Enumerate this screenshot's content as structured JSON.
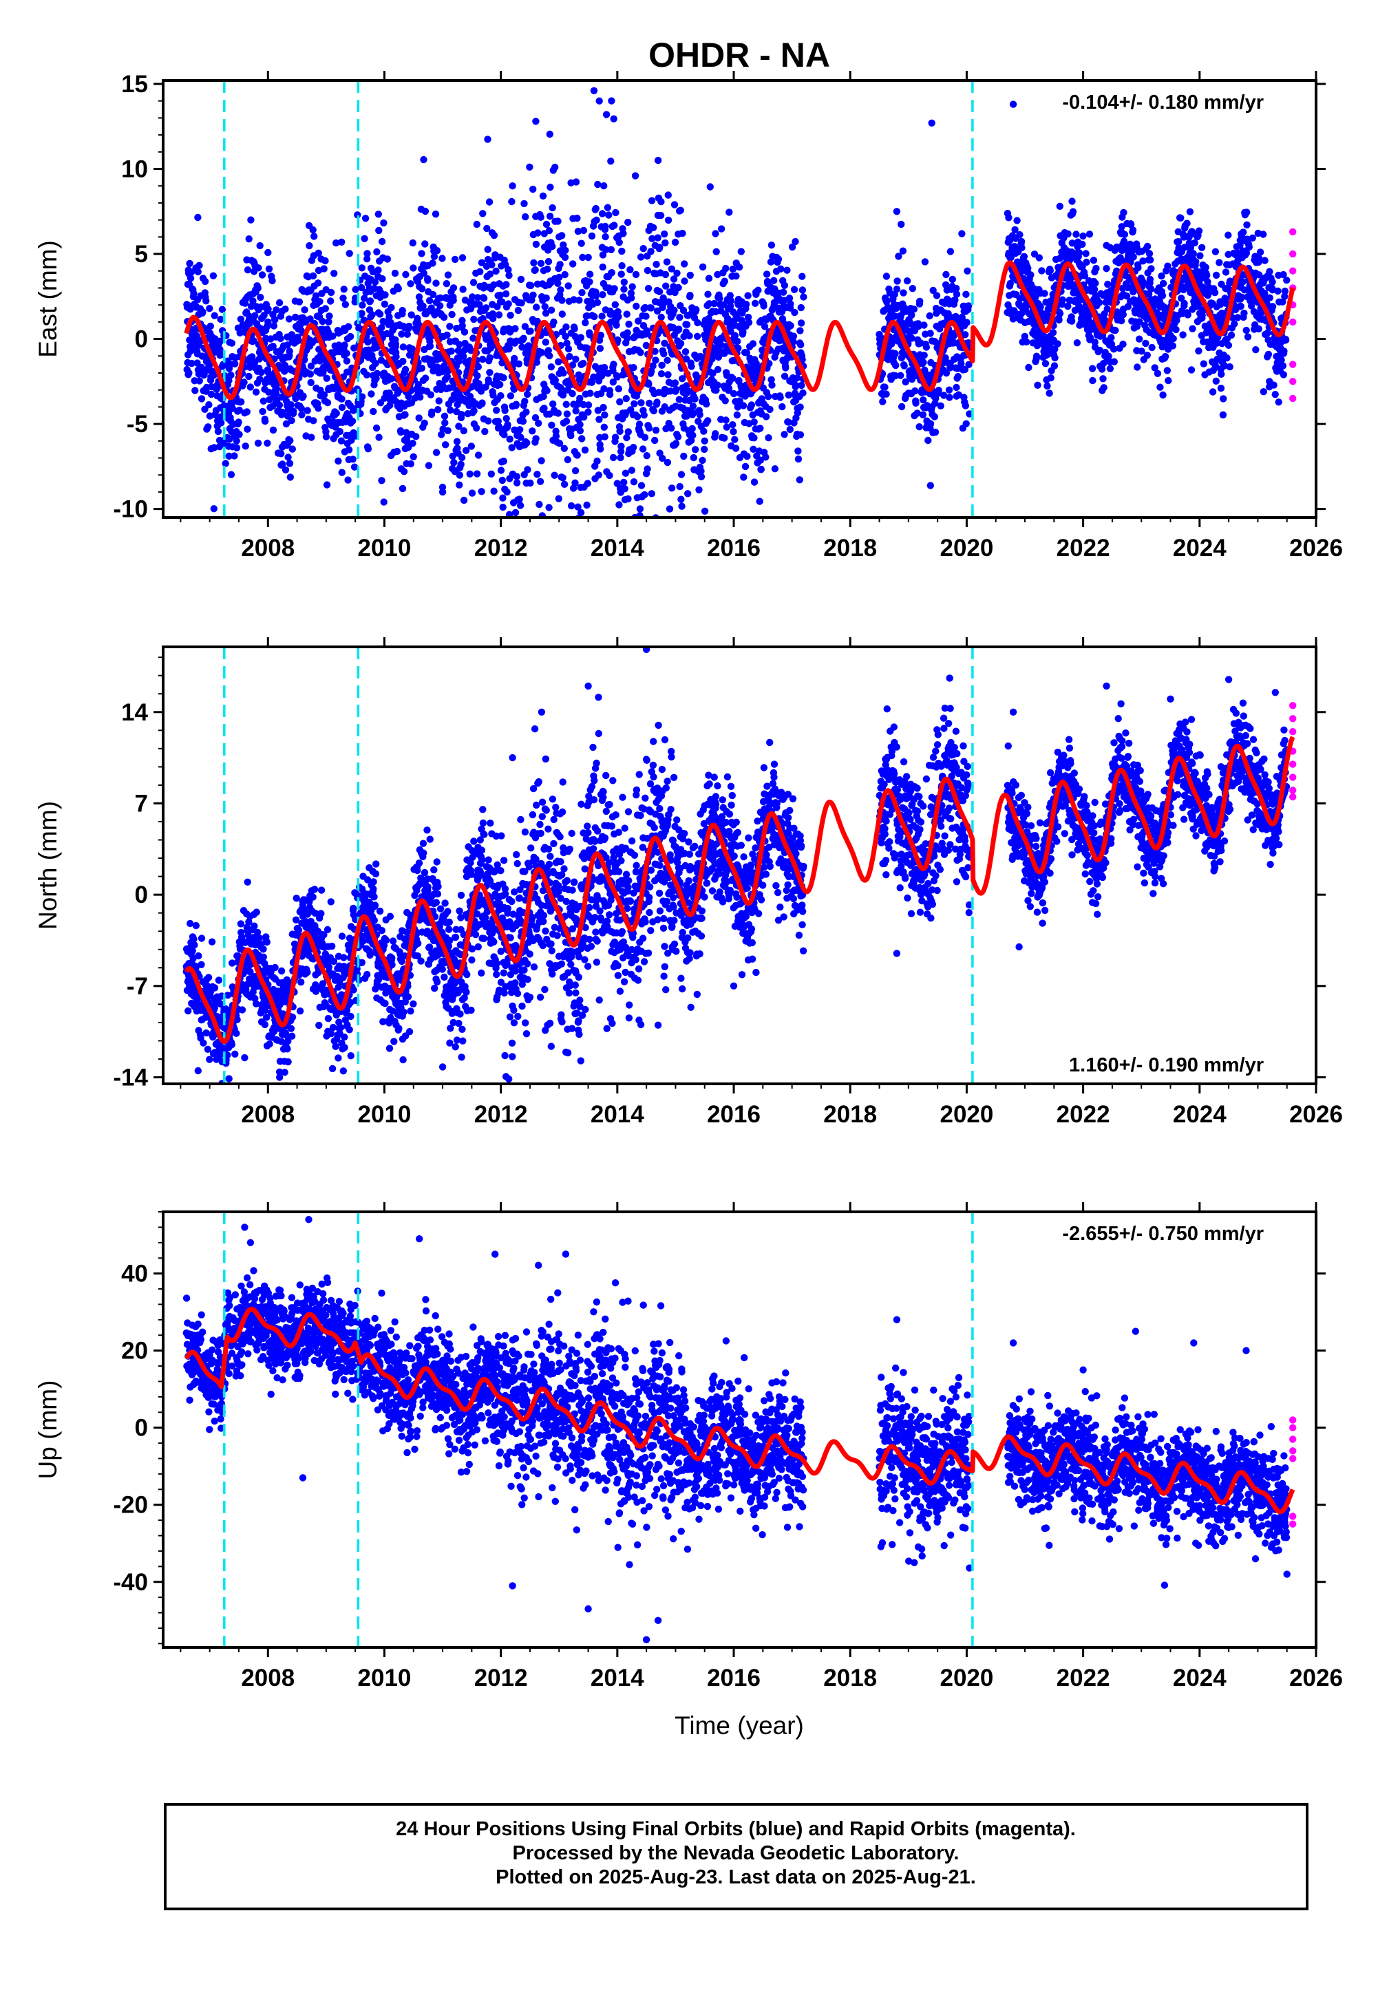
{
  "chart_data": [
    {
      "type": "scatter",
      "title": "OHDR - NA",
      "xlabel": "",
      "ylabel": "East (mm)",
      "xlim": [
        2006.2,
        2026.0
      ],
      "ylim": [
        -10.5,
        15.2
      ],
      "yticks": [
        15,
        10,
        5,
        0,
        -5,
        -10
      ],
      "xticks": [
        2008,
        2010,
        2012,
        2014,
        2016,
        2018,
        2020,
        2022,
        2024,
        2026
      ],
      "rate_text": "-0.104+/- 0.180 mm/yr",
      "rate_position": "top-right",
      "breaks": [
        2007.25,
        2009.55,
        2020.1
      ],
      "final_orbits": {
        "segments": [
          [
            2006.6,
            2017.2
          ],
          [
            2018.5,
            2020.05
          ],
          [
            2020.7,
            2025.5
          ]
        ],
        "points": [
          [
            2006.65,
            3.2
          ],
          [
            2007.0,
            -1.5
          ],
          [
            2007.5,
            -2.0
          ],
          [
            2008.0,
            1.0
          ],
          [
            2008.6,
            -1.8
          ],
          [
            2009.2,
            0.5
          ],
          [
            2009.8,
            -1.2
          ],
          [
            2010.6,
            0.8
          ],
          [
            2011.0,
            -9.0
          ],
          [
            2011.6,
            0.5
          ],
          [
            2012.2,
            9.0
          ],
          [
            2012.6,
            12.8
          ],
          [
            2013.0,
            6.0
          ],
          [
            2013.6,
            14.6
          ],
          [
            2013.9,
            14.0
          ],
          [
            2014.0,
            -8.5
          ],
          [
            2014.7,
            10.5
          ],
          [
            2014.9,
            -10.0
          ],
          [
            2015.5,
            -6.0
          ],
          [
            2016.2,
            -7.5
          ],
          [
            2016.8,
            0.5
          ],
          [
            2018.8,
            7.5
          ],
          [
            2019.4,
            12.7
          ],
          [
            2019.7,
            -3.0
          ],
          [
            2020.8,
            13.8
          ],
          [
            2021.6,
            7.8
          ],
          [
            2022.4,
            5.5
          ],
          [
            2023.0,
            2.5
          ],
          [
            2023.8,
            4.2
          ],
          [
            2024.5,
            2.0
          ],
          [
            2025.2,
            -2.5
          ]
        ],
        "spread": [
          [
            2006.6,
            2.0
          ],
          [
            2011.8,
            3.5
          ],
          [
            2012.3,
            5.0
          ],
          [
            2014.5,
            5.0
          ],
          [
            2015.0,
            3.5
          ],
          [
            2017.2,
            2.5
          ],
          [
            2018.5,
            2.0
          ],
          [
            2020.05,
            2.0
          ],
          [
            2020.7,
            1.6
          ],
          [
            2025.5,
            1.6
          ]
        ]
      },
      "rapid_orbits": {
        "x_range": [
          2025.55,
          2025.65
        ],
        "points": [
          [
            2025.6,
            6.3
          ],
          [
            2025.6,
            5.0
          ],
          [
            2025.6,
            4.0
          ],
          [
            2025.6,
            3.0
          ],
          [
            2025.6,
            2.0
          ],
          [
            2025.6,
            1.0
          ],
          [
            2025.6,
            -1.5
          ],
          [
            2025.6,
            -2.5
          ],
          [
            2025.6,
            -3.5
          ]
        ]
      },
      "model": {
        "trend": [
          [
            2006.6,
            -0.5
          ],
          [
            2007.25,
            -1.5
          ],
          [
            2009.6,
            -1.0
          ],
          [
            2015.0,
            -1.0
          ],
          [
            2020.1,
            -1.0
          ],
          [
            2020.1,
            1.0
          ],
          [
            2020.7,
            2.5
          ],
          [
            2025.6,
            2.2
          ]
        ],
        "annual_amplitude": 1.8,
        "annual_phase": 0.55,
        "semiannual_amplitude": 0.45
      }
    },
    {
      "type": "scatter",
      "title": "",
      "xlabel": "",
      "ylabel": "North (mm)",
      "xlim": [
        2006.2,
        2026.0
      ],
      "ylim": [
        -14.5,
        19.0
      ],
      "yticks": [
        14,
        7,
        0,
        -7,
        -14
      ],
      "xticks": [
        2008,
        2010,
        2012,
        2014,
        2016,
        2018,
        2020,
        2022,
        2024,
        2026
      ],
      "rate_text": "1.160+/- 0.190 mm/yr",
      "rate_position": "bottom-right",
      "breaks": [
        2007.25,
        2009.55,
        2020.1
      ],
      "final_orbits": {
        "segments": [
          [
            2006.6,
            2017.2
          ],
          [
            2018.5,
            2020.05
          ],
          [
            2020.7,
            2025.5
          ]
        ],
        "points": [
          [
            2006.6,
            -5.5
          ],
          [
            2006.8,
            -13.5
          ],
          [
            2007.6,
            -12.5
          ],
          [
            2008.2,
            -14.0
          ],
          [
            2009.8,
            1.8
          ],
          [
            2011.0,
            -13.2
          ],
          [
            2012.2,
            10.5
          ],
          [
            2012.7,
            14.0
          ],
          [
            2013.5,
            16.0
          ],
          [
            2014.5,
            18.8
          ],
          [
            2014.7,
            -10.0
          ],
          [
            2015.5,
            3.0
          ],
          [
            2016.0,
            -7.0
          ],
          [
            2018.8,
            -4.5
          ],
          [
            2019.5,
            11.5
          ],
          [
            2020.8,
            14.0
          ],
          [
            2020.9,
            -4.0
          ],
          [
            2022.4,
            16.0
          ],
          [
            2023.5,
            15.0
          ],
          [
            2024.5,
            16.5
          ],
          [
            2025.3,
            15.5
          ]
        ],
        "spread": [
          [
            2006.6,
            1.6
          ],
          [
            2011.8,
            2.5
          ],
          [
            2012.3,
            4.0
          ],
          [
            2014.6,
            4.5
          ],
          [
            2015.2,
            2.5
          ],
          [
            2017.2,
            2.0
          ],
          [
            2018.5,
            3.0
          ],
          [
            2020.05,
            3.0
          ],
          [
            2020.7,
            1.6
          ],
          [
            2025.5,
            1.6
          ]
        ]
      },
      "rapid_orbits": {
        "x_range": [
          2025.55,
          2025.65
        ],
        "points": [
          [
            2025.6,
            14.5
          ],
          [
            2025.6,
            13.5
          ],
          [
            2025.6,
            12.5
          ],
          [
            2025.6,
            11.0
          ],
          [
            2025.6,
            10.0
          ],
          [
            2025.6,
            9.0
          ],
          [
            2025.6,
            8.0
          ],
          [
            2025.6,
            7.5
          ]
        ]
      },
      "model": {
        "trend": [
          [
            2006.6,
            -9.0
          ],
          [
            2007.25,
            -8.0
          ],
          [
            2009.6,
            -5.0
          ],
          [
            2015.0,
            1.5
          ],
          [
            2020.1,
            6.0
          ],
          [
            2020.1,
            3.0
          ],
          [
            2020.7,
            4.5
          ],
          [
            2025.6,
            9.0
          ]
        ],
        "annual_amplitude": 3.0,
        "annual_phase": 0.45,
        "semiannual_amplitude": 0.7
      }
    },
    {
      "type": "scatter",
      "title": "",
      "xlabel": "Time (year)",
      "ylabel": "Up (mm)",
      "xlim": [
        2006.2,
        2026.0
      ],
      "ylim": [
        -57,
        56
      ],
      "yticks": [
        40,
        20,
        0,
        -20,
        -40
      ],
      "xticks": [
        2008,
        2010,
        2012,
        2014,
        2016,
        2018,
        2020,
        2022,
        2024,
        2026
      ],
      "rate_text": "-2.655+/- 0.750 mm/yr",
      "rate_position": "top-right",
      "breaks": [
        2007.25,
        2009.55,
        2020.1
      ],
      "final_orbits": {
        "segments": [
          [
            2006.6,
            2017.2
          ],
          [
            2018.5,
            2020.05
          ],
          [
            2020.7,
            2025.5
          ]
        ],
        "points": [
          [
            2007.6,
            52.0
          ],
          [
            2007.7,
            48.0
          ],
          [
            2008.7,
            54.0
          ],
          [
            2008.6,
            -13.0
          ],
          [
            2010.6,
            49.0
          ],
          [
            2011.9,
            45.0
          ],
          [
            2012.2,
            -41.0
          ],
          [
            2013.5,
            -47.0
          ],
          [
            2014.5,
            -55.0
          ],
          [
            2014.7,
            -50.0
          ],
          [
            2018.8,
            28.0
          ],
          [
            2019.1,
            -35.0
          ],
          [
            2020.8,
            22.0
          ],
          [
            2022.0,
            15.0
          ],
          [
            2022.9,
            25.0
          ],
          [
            2023.9,
            22.0
          ],
          [
            2024.8,
            20.0
          ],
          [
            2025.5,
            -38.0
          ]
        ],
        "spread": [
          [
            2006.6,
            5.0
          ],
          [
            2011.8,
            7.0
          ],
          [
            2012.4,
            10.0
          ],
          [
            2014.8,
            12.0
          ],
          [
            2015.3,
            8.0
          ],
          [
            2017.2,
            7.0
          ],
          [
            2018.5,
            9.0
          ],
          [
            2020.05,
            9.0
          ],
          [
            2020.7,
            6.0
          ],
          [
            2025.5,
            6.0
          ]
        ]
      },
      "rapid_orbits": {
        "x_range": [
          2025.55,
          2025.65
        ],
        "points": [
          [
            2025.6,
            2.0
          ],
          [
            2025.6,
            0.0
          ],
          [
            2025.6,
            -3.0
          ],
          [
            2025.6,
            -6.0
          ],
          [
            2025.6,
            -8.0
          ],
          [
            2025.6,
            -23.0
          ],
          [
            2025.6,
            -25.0
          ]
        ]
      },
      "model": {
        "trend": [
          [
            2006.6,
            16.0
          ],
          [
            2007.2,
            12.0
          ],
          [
            2007.3,
            27.0
          ],
          [
            2009.5,
            24.0
          ],
          [
            2009.6,
            15.0
          ],
          [
            2011.0,
            10.0
          ],
          [
            2013.0,
            5.0
          ],
          [
            2015.0,
            -3.0
          ],
          [
            2017.0,
            -7.0
          ],
          [
            2020.1,
            -11.0
          ],
          [
            2020.1,
            -6.0
          ],
          [
            2021.0,
            -7.0
          ],
          [
            2025.6,
            -18.0
          ]
        ],
        "annual_amplitude": 3.5,
        "annual_phase": 0.55,
        "semiannual_amplitude": 1.5
      }
    }
  ],
  "caption": {
    "lines": [
      "24 Hour Positions Using Final Orbits (blue) and Rapid Orbits (magenta).",
      "Processed by the Nevada Geodetic Laboratory.",
      "Plotted on 2025-Aug-23. Last data on 2025-Aug-21."
    ]
  },
  "colors": {
    "final_orbits": "#0000ff",
    "rapid_orbits": "#ff00ff",
    "model": "#ff0000",
    "breaks": "#00e5ee",
    "frame": "#000000"
  }
}
